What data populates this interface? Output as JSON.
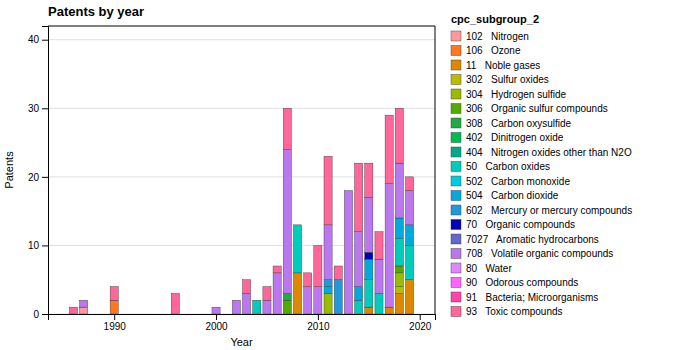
{
  "chart_data": {
    "type": "bar",
    "stacked": true,
    "title": "Patents by year",
    "xlabel": "Year",
    "ylabel": "Patents",
    "legend_title": "cpc_subgroup_2",
    "legend": "right",
    "grid": true,
    "x": [
      1986,
      1987,
      1988,
      1989,
      1990,
      1991,
      1992,
      1993,
      1994,
      1995,
      1996,
      1997,
      1998,
      1999,
      2000,
      2001,
      2002,
      2003,
      2004,
      2005,
      2006,
      2007,
      2008,
      2009,
      2010,
      2011,
      2012,
      2013,
      2014,
      2015,
      2016,
      2017,
      2018,
      2019
    ],
    "xlim": [
      1983.5,
      2021.5
    ],
    "xticks": [
      1990,
      2000,
      2010,
      2020
    ],
    "ylim": [
      0,
      42
    ],
    "yticks": [
      0,
      10,
      20,
      30,
      40
    ],
    "series": [
      {
        "name": "102   Nitrogen",
        "color": "#FF9999",
        "values": [
          0,
          1,
          0,
          0,
          0,
          0,
          0,
          0,
          0,
          0,
          0,
          0,
          0,
          0,
          0,
          0,
          0,
          0,
          0,
          0,
          0,
          0,
          0,
          0,
          0,
          0,
          0,
          0,
          0,
          0,
          0,
          0,
          0,
          0
        ]
      },
      {
        "name": "106   Ozone",
        "color": "#FF7722",
        "values": [
          0,
          0,
          0,
          0,
          2,
          0,
          0,
          0,
          0,
          0,
          0,
          0,
          0,
          0,
          0,
          0,
          0,
          0,
          0,
          0,
          0,
          0,
          0,
          0,
          0,
          0,
          0,
          0,
          0,
          0,
          0,
          0,
          0,
          0
        ]
      },
      {
        "name": "11   Noble gases",
        "color": "#DD8800",
        "values": [
          0,
          0,
          0,
          0,
          0,
          0,
          0,
          0,
          0,
          0,
          0,
          0,
          0,
          0,
          0,
          0,
          0,
          0,
          0,
          0,
          0,
          0,
          6,
          0,
          0,
          0,
          0,
          0,
          0,
          1,
          0,
          1,
          3,
          5
        ]
      },
      {
        "name": "302   Sulfur oxides",
        "color": "#BBBB00",
        "values": [
          0,
          0,
          0,
          0,
          0,
          0,
          0,
          0,
          0,
          0,
          0,
          0,
          0,
          0,
          0,
          0,
          0,
          0,
          0,
          0,
          0,
          0,
          0,
          0,
          0,
          0,
          0,
          0,
          0,
          0,
          0,
          0,
          1,
          0
        ]
      },
      {
        "name": "304   Hydrogen sulfide",
        "color": "#99BB00",
        "values": [
          0,
          0,
          0,
          0,
          0,
          0,
          0,
          0,
          0,
          0,
          0,
          0,
          0,
          0,
          0,
          0,
          0,
          0,
          0,
          0,
          0,
          0,
          0,
          0,
          0,
          3,
          0,
          0,
          0,
          0,
          0,
          0,
          2,
          0
        ]
      },
      {
        "name": "306   Organic sulfur compounds",
        "color": "#55AA00",
        "values": [
          0,
          0,
          0,
          0,
          0,
          0,
          0,
          0,
          0,
          0,
          0,
          0,
          0,
          0,
          0,
          0,
          0,
          0,
          0,
          0,
          0,
          2,
          0,
          0,
          0,
          0,
          0,
          0,
          0,
          0,
          0,
          0,
          1,
          0
        ]
      },
      {
        "name": "308   Carbon oxysulfide",
        "color": "#22AA44",
        "values": [
          0,
          0,
          0,
          0,
          0,
          0,
          0,
          0,
          0,
          0,
          0,
          0,
          0,
          0,
          0,
          0,
          0,
          0,
          0,
          0,
          0,
          1,
          0,
          0,
          0,
          0,
          0,
          0,
          0,
          0,
          0,
          0,
          0,
          0
        ]
      },
      {
        "name": "402   Dinitrogen oxide",
        "color": "#00BB55",
        "values": [
          0,
          0,
          0,
          0,
          0,
          0,
          0,
          0,
          0,
          0,
          0,
          0,
          0,
          0,
          0,
          0,
          0,
          0,
          0,
          0,
          0,
          0,
          0,
          0,
          0,
          0,
          0,
          0,
          0,
          0,
          0,
          0,
          0,
          0
        ]
      },
      {
        "name": "404   Nitrogen oxides other than N2O",
        "color": "#00AA88",
        "values": [
          0,
          0,
          0,
          0,
          0,
          0,
          0,
          0,
          0,
          0,
          0,
          0,
          0,
          0,
          0,
          0,
          0,
          0,
          0,
          0,
          0,
          0,
          0,
          0,
          0,
          0,
          0,
          0,
          0,
          0,
          0,
          0,
          0,
          0
        ]
      },
      {
        "name": "50   Carbon oxides",
        "color": "#00CCBB",
        "values": [
          0,
          0,
          0,
          0,
          0,
          0,
          0,
          0,
          0,
          0,
          0,
          0,
          0,
          0,
          0,
          0,
          0,
          0,
          2,
          0,
          0,
          0,
          7,
          0,
          0,
          0,
          0,
          0,
          2,
          4,
          3,
          0,
          4,
          5
        ]
      },
      {
        "name": "502   Carbon monoxide",
        "color": "#00CCDD",
        "values": [
          0,
          0,
          0,
          0,
          0,
          0,
          0,
          0,
          0,
          0,
          0,
          0,
          0,
          0,
          0,
          0,
          0,
          0,
          0,
          0,
          0,
          0,
          0,
          0,
          0,
          0,
          0,
          0,
          0,
          0,
          0,
          0,
          0,
          0
        ]
      },
      {
        "name": "504   Carbon dioxide",
        "color": "#00AADD",
        "values": [
          0,
          0,
          0,
          0,
          0,
          0,
          0,
          0,
          0,
          0,
          0,
          0,
          0,
          0,
          0,
          0,
          0,
          0,
          0,
          0,
          0,
          0,
          0,
          0,
          0,
          1,
          0,
          0,
          2,
          3,
          0,
          0,
          3,
          3
        ]
      },
      {
        "name": "602   Mercury or mercury compounds",
        "color": "#2299DD",
        "values": [
          0,
          0,
          0,
          0,
          0,
          0,
          0,
          0,
          0,
          0,
          0,
          0,
          0,
          0,
          0,
          0,
          0,
          0,
          0,
          0,
          0,
          0,
          0,
          0,
          0,
          1,
          5,
          0,
          0,
          0,
          0,
          0,
          0,
          0
        ]
      },
      {
        "name": "70   Organic compounds",
        "color": "#0000BB",
        "values": [
          0,
          0,
          0,
          0,
          0,
          0,
          0,
          0,
          0,
          0,
          0,
          0,
          0,
          0,
          0,
          0,
          0,
          0,
          0,
          0,
          0,
          0,
          0,
          0,
          0,
          0,
          0,
          0,
          0,
          1,
          0,
          0,
          0,
          0
        ]
      },
      {
        "name": "7027   Aromatic hydrocarbons",
        "color": "#6666CC",
        "values": [
          0,
          0,
          0,
          0,
          0,
          0,
          0,
          0,
          0,
          0,
          0,
          0,
          0,
          0,
          0,
          0,
          0,
          0,
          0,
          0,
          0,
          0,
          0,
          0,
          0,
          0,
          0,
          0,
          0,
          0,
          0,
          0,
          0,
          0
        ]
      },
      {
        "name": "708   Volatile organic compounds",
        "color": "#BB77EE",
        "values": [
          0,
          1,
          0,
          0,
          0,
          0,
          0,
          0,
          0,
          0,
          0,
          0,
          0,
          0,
          1,
          0,
          2,
          3,
          0,
          2,
          6,
          21,
          0,
          4,
          4,
          8,
          0,
          18,
          8,
          8,
          5,
          18,
          8,
          5
        ]
      },
      {
        "name": "80   Water",
        "color": "#DD88FF",
        "values": [
          0,
          0,
          0,
          0,
          0,
          0,
          0,
          0,
          0,
          0,
          0,
          0,
          0,
          0,
          0,
          0,
          0,
          0,
          0,
          0,
          0,
          0,
          0,
          0,
          0,
          0,
          0,
          0,
          0,
          0,
          0,
          0,
          0,
          0
        ]
      },
      {
        "name": "90   Odorous compounds",
        "color": "#FF66FF",
        "values": [
          0,
          0,
          0,
          0,
          0,
          0,
          0,
          0,
          0,
          0,
          0,
          0,
          0,
          0,
          0,
          0,
          0,
          0,
          0,
          0,
          0,
          0,
          0,
          0,
          0,
          0,
          0,
          0,
          0,
          0,
          0,
          0,
          0,
          0
        ]
      },
      {
        "name": "91   Bacteria; Microorganisms",
        "color": "#FF44AA",
        "values": [
          0,
          0,
          0,
          0,
          0,
          0,
          0,
          0,
          0,
          0,
          0,
          0,
          0,
          0,
          0,
          0,
          0,
          0,
          0,
          0,
          0,
          0,
          0,
          0,
          0,
          0,
          0,
          0,
          0,
          0,
          0,
          0,
          0,
          0
        ]
      },
      {
        "name": "93   Toxic compounds",
        "color": "#FF6699",
        "values": [
          1,
          0,
          0,
          0,
          2,
          0,
          0,
          0,
          0,
          0,
          3,
          0,
          0,
          0,
          0,
          0,
          0,
          2,
          0,
          2,
          1,
          6,
          0,
          2,
          6,
          10,
          2,
          0,
          10,
          5,
          4,
          10,
          8,
          2
        ]
      }
    ]
  }
}
